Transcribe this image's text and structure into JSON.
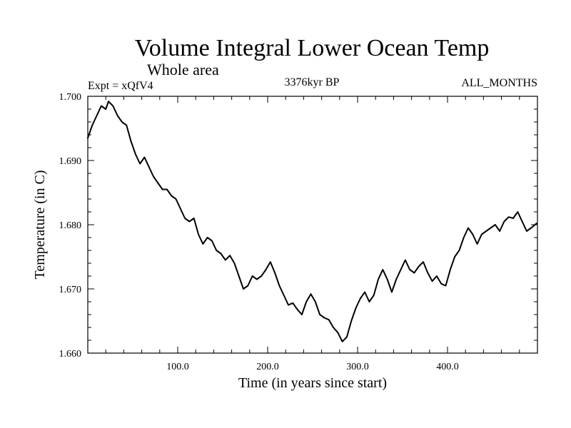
{
  "chart_data": {
    "type": "line",
    "title": "Volume Integral Lower Ocean Temp",
    "subtitle": "Whole area",
    "experiment_label": "Expt = xQfV4",
    "period_label": "3376kyr BP",
    "months_label": "ALL_MONTHS",
    "xlabel": "Time (in years since start)",
    "ylabel": "Temperature (in C)",
    "xlim": [
      0,
      500
    ],
    "ylim": [
      1.66,
      1.7
    ],
    "x_ticks": [
      100,
      200,
      300,
      400
    ],
    "x_tick_labels": [
      "100.0",
      "200.0",
      "300.0",
      "400.0"
    ],
    "y_ticks": [
      1.66,
      1.67,
      1.68,
      1.69,
      1.7
    ],
    "y_tick_labels": [
      "1.660",
      "1.670",
      "1.680",
      "1.690",
      "1.700"
    ],
    "grid": false,
    "series": [
      {
        "name": "Volume Integral Lower Ocean Temp",
        "x": [
          0,
          5,
          10,
          15,
          20,
          23,
          28,
          33,
          38,
          43,
          48,
          53,
          58,
          63,
          68,
          73,
          78,
          83,
          88,
          93,
          98,
          103,
          108,
          113,
          118,
          123,
          128,
          133,
          138,
          143,
          148,
          153,
          158,
          163,
          168,
          173,
          178,
          183,
          188,
          193,
          198,
          203,
          208,
          213,
          218,
          223,
          228,
          233,
          238,
          243,
          248,
          253,
          258,
          263,
          268,
          273,
          278,
          283,
          288,
          293,
          298,
          303,
          308,
          313,
          318,
          323,
          328,
          333,
          338,
          343,
          348,
          353,
          358,
          363,
          368,
          373,
          378,
          383,
          388,
          393,
          398,
          403,
          408,
          413,
          418,
          423,
          428,
          433,
          438,
          443,
          448,
          453,
          458,
          463,
          468,
          473,
          478,
          483,
          488,
          493,
          499
        ],
        "y": [
          1.6935,
          1.6955,
          1.697,
          1.6985,
          1.698,
          1.6992,
          1.6985,
          1.697,
          1.696,
          1.6955,
          1.693,
          1.691,
          1.6895,
          1.6905,
          1.689,
          1.6875,
          1.6865,
          1.6855,
          1.6855,
          1.6845,
          1.684,
          1.6825,
          1.681,
          1.6805,
          1.681,
          1.6785,
          1.677,
          1.678,
          1.6775,
          1.676,
          1.6755,
          1.6745,
          1.6752,
          1.674,
          1.672,
          1.67,
          1.6705,
          1.672,
          1.6715,
          1.672,
          1.673,
          1.6742,
          1.6725,
          1.6705,
          1.669,
          1.6675,
          1.6678,
          1.6668,
          1.666,
          1.668,
          1.6692,
          1.668,
          1.666,
          1.6655,
          1.6652,
          1.664,
          1.6632,
          1.6618,
          1.6625,
          1.665,
          1.667,
          1.6685,
          1.6695,
          1.668,
          1.669,
          1.6715,
          1.673,
          1.6715,
          1.6695,
          1.6715,
          1.673,
          1.6745,
          1.673,
          1.6725,
          1.6735,
          1.6742,
          1.6725,
          1.6712,
          1.672,
          1.6708,
          1.6705,
          1.673,
          1.675,
          1.676,
          1.678,
          1.6795,
          1.6785,
          1.677,
          1.6785,
          1.679,
          1.6795,
          1.68,
          1.679,
          1.6805,
          1.6812,
          1.681,
          1.682,
          1.6805,
          1.679,
          1.6795,
          1.6802
        ]
      }
    ]
  }
}
